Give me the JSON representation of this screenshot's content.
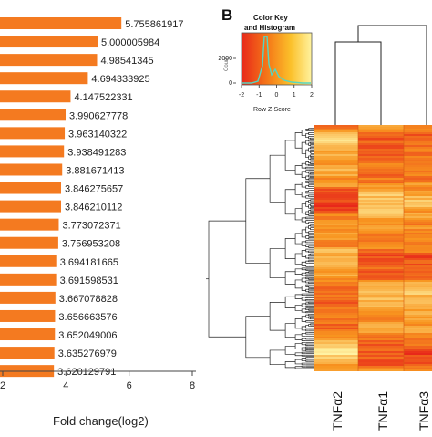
{
  "panel_b_label": "B",
  "color_key": {
    "title_line1": "Color Key",
    "title_line2": "and Histogram",
    "ylabel": "Count",
    "xlabel": "Row Z-Score",
    "y_ticks": [
      "0",
      "2000"
    ],
    "x_ticks": [
      "-2",
      "-1",
      "0",
      "1",
      "2"
    ],
    "gradient_colors": [
      "#e8281a",
      "#f57a18",
      "#fbc02a",
      "#fff3a0"
    ],
    "histogram_color": "#55d6c2"
  },
  "heatmap": {
    "columns": [
      "TNFα2",
      "TNFα1",
      "TNFα3"
    ]
  },
  "colors": {
    "bar": "#f47a20",
    "heat_low": "#e8281a",
    "heat_mid": "#f8951f",
    "heat_high": "#fff6a8"
  },
  "chart_data": [
    {
      "type": "bar",
      "orientation": "horizontal",
      "xlabel": "Fold change(log2)",
      "x_ticks": [
        "2",
        "4",
        "6",
        "8"
      ],
      "xlim": [
        2,
        8
      ],
      "values": [
        5.755861917,
        5.000005984,
        4.98541345,
        4.694333925,
        4.147522331,
        3.990627778,
        3.963140322,
        3.938491283,
        3.881671413,
        3.846275657,
        3.846210112,
        3.773072371,
        3.756953208,
        3.694181665,
        3.691598531,
        3.667078828,
        3.656663576,
        3.652049006,
        3.635276979,
        3.620129791
      ],
      "labels": [
        "5.755861917",
        "5.000005984",
        "4.98541345",
        "4.694333925",
        "4.147522331",
        "3.990627778",
        "3.963140322",
        "3.938491283",
        "3.881671413",
        "3.846275657",
        "3.846210112",
        "3.773072371",
        "3.756953208",
        "3.694181665",
        "3.691598531",
        "3.667078828",
        "3.656663576",
        "3.652049006",
        "3.635276979",
        "3.620129791"
      ]
    },
    {
      "type": "heatmap",
      "columns": [
        "TNFα2",
        "TNFα1",
        "TNFα3"
      ],
      "dendrogram": true
    }
  ]
}
